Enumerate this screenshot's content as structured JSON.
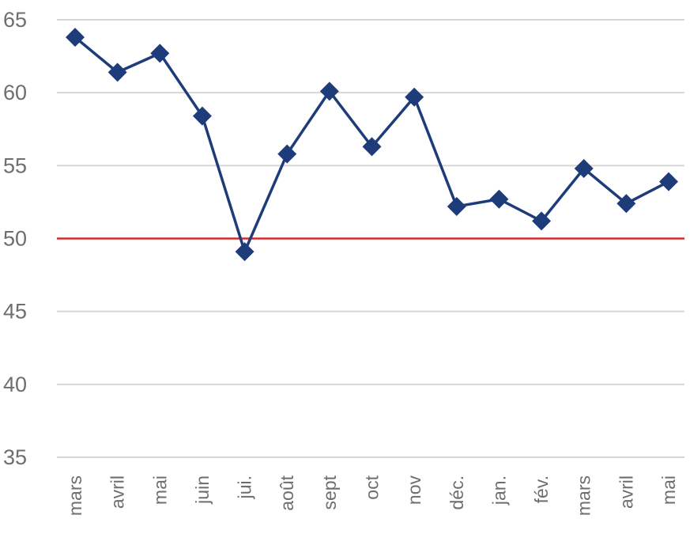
{
  "chart_data": {
    "type": "line",
    "title": "",
    "xlabel": "",
    "ylabel": "",
    "categories": [
      "mars",
      "avril",
      "mai",
      "juin",
      "jui.",
      "août",
      "sept",
      "oct",
      "nov",
      "déc.",
      "jan.",
      "fév.",
      "mars",
      "avril",
      "mai"
    ],
    "series": [
      {
        "values": [
          63.8,
          61.4,
          62.7,
          58.4,
          49.1,
          55.8,
          60.1,
          56.3,
          59.7,
          52.2,
          52.7,
          51.2,
          54.8,
          52.4,
          53.9
        ],
        "color": "#1f3c7a"
      }
    ],
    "reference_line": {
      "value": 50,
      "color": "#d42a2a"
    },
    "ylim": [
      35,
      65
    ],
    "yticks": [
      "35",
      "40",
      "45",
      "50",
      "55",
      "60",
      "65"
    ],
    "grid": true,
    "grid_color": "#d6d6d6",
    "marker": "diamond",
    "legend": "none"
  }
}
